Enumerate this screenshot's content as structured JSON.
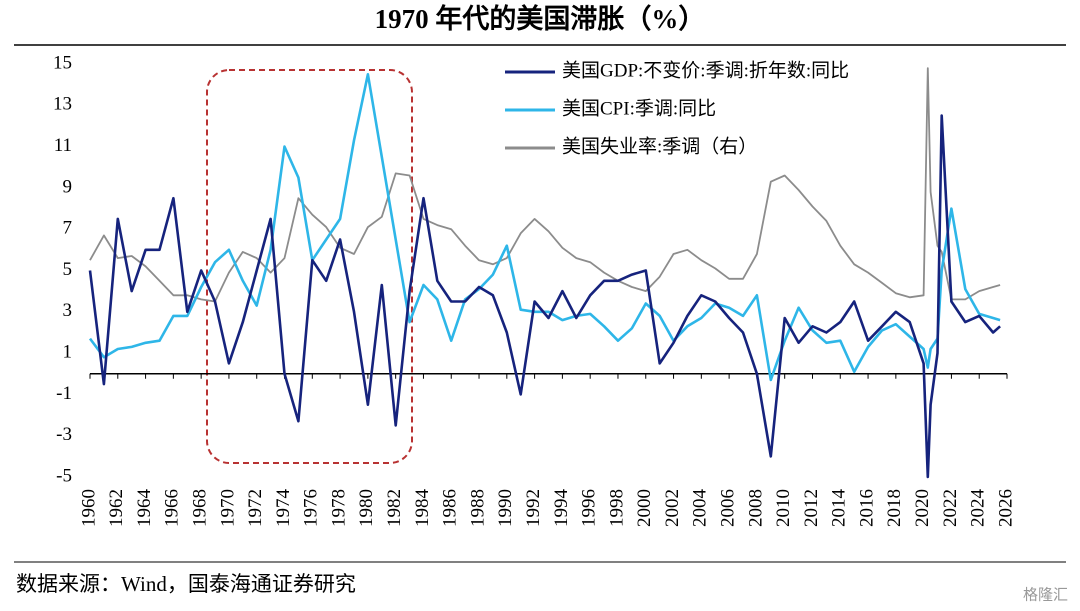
{
  "chart_data": {
    "type": "line",
    "title": "1970 年代的美国滞胀（%）",
    "source": "数据来源：Wind，国泰海通证券研究",
    "watermark": "格隆汇",
    "xlim": [
      1960,
      2026
    ],
    "ylim": [
      -5,
      15
    ],
    "yticks": [
      -5,
      -3,
      -1,
      1,
      3,
      5,
      7,
      9,
      11,
      13,
      15
    ],
    "xticks": [
      1960,
      1962,
      1964,
      1966,
      1968,
      1970,
      1972,
      1974,
      1976,
      1978,
      1980,
      1982,
      1984,
      1986,
      1988,
      1990,
      1992,
      1994,
      1996,
      1998,
      2000,
      2002,
      2004,
      2006,
      2008,
      2010,
      2012,
      2014,
      2016,
      2018,
      2020,
      2022,
      2024,
      2026
    ],
    "legend": "upper right",
    "x": [
      1960,
      1961,
      1962,
      1963,
      1964,
      1965,
      1966,
      1967,
      1968,
      1969,
      1970,
      1971,
      1972,
      1973,
      1974,
      1975,
      1976,
      1977,
      1978,
      1979,
      1980,
      1981,
      1982,
      1983,
      1984,
      1985,
      1986,
      1987,
      1988,
      1989,
      1990,
      1991,
      1992,
      1993,
      1994,
      1995,
      1996,
      1997,
      1998,
      1999,
      2000,
      2001,
      2002,
      2003,
      2004,
      2005,
      2006,
      2007,
      2008,
      2009,
      2010,
      2011,
      2012,
      2013,
      2014,
      2015,
      2016,
      2017,
      2018,
      2019,
      2020,
      2020.3,
      2020.5,
      2021,
      2021.3,
      2022,
      2023,
      2024,
      2025,
      2025.5
    ],
    "series": [
      {
        "name": "美国GDP:不变价:季调:折年数:同比",
        "color": "#16237d",
        "values": [
          5,
          -0.5,
          7.5,
          4,
          6,
          6,
          8.5,
          3,
          5,
          3.5,
          0.5,
          2.5,
          5,
          7.5,
          0,
          -2.3,
          5.5,
          4.5,
          6.5,
          3,
          -1.5,
          4.3,
          -2.5,
          4,
          8.5,
          4.5,
          3.5,
          3.5,
          4.2,
          3.8,
          2,
          -1,
          3.5,
          2.7,
          4,
          2.7,
          3.8,
          4.5,
          4.5,
          4.8,
          5,
          0.5,
          1.5,
          2.8,
          3.8,
          3.5,
          2.7,
          2,
          0,
          -4,
          2.7,
          1.5,
          2.3,
          2,
          2.5,
          3.5,
          1.6,
          2.3,
          3,
          2.5,
          0.5,
          -5,
          -1.5,
          1,
          12.5,
          3.5,
          2.5,
          2.8,
          2,
          2.3
        ]
      },
      {
        "name": "美国CPI:季调:同比",
        "color": "#2eb6e8",
        "values": [
          1.7,
          0.8,
          1.2,
          1.3,
          1.5,
          1.6,
          2.8,
          2.8,
          4.2,
          5.4,
          6,
          4.5,
          3.3,
          6,
          11,
          9.5,
          5.5,
          6.5,
          7.5,
          11.3,
          14.5,
          10.5,
          6.5,
          2.5,
          4.3,
          3.6,
          1.6,
          3.6,
          4.1,
          4.8,
          6.2,
          3.1,
          3,
          3,
          2.6,
          2.8,
          2.9,
          2.3,
          1.6,
          2.2,
          3.4,
          2.8,
          1.6,
          2.3,
          2.7,
          3.4,
          3.2,
          2.8,
          3.8,
          -0.3,
          1.6,
          3.2,
          2.1,
          1.5,
          1.6,
          0.1,
          1.3,
          2.1,
          2.4,
          1.8,
          1.2,
          0.3,
          1.2,
          1.7,
          5,
          8,
          4.1,
          2.9,
          2.7,
          2.6
        ]
      },
      {
        "name": "美国失业率:季调（右）",
        "color": "#8c8c8c",
        "values": [
          5.5,
          6.7,
          5.6,
          5.7,
          5.2,
          4.5,
          3.8,
          3.8,
          3.6,
          3.5,
          4.9,
          5.9,
          5.6,
          4.9,
          5.6,
          8.5,
          7.7,
          7.1,
          6.1,
          5.8,
          7.1,
          7.6,
          9.7,
          9.6,
          7.5,
          7.2,
          7,
          6.2,
          5.5,
          5.3,
          5.6,
          6.8,
          7.5,
          6.9,
          6.1,
          5.6,
          5.4,
          4.9,
          4.5,
          4.2,
          4,
          4.7,
          5.8,
          6,
          5.5,
          5.1,
          4.6,
          4.6,
          5.8,
          9.3,
          9.6,
          8.9,
          8.1,
          7.4,
          6.2,
          5.3,
          4.9,
          4.4,
          3.9,
          3.7,
          3.8,
          14.8,
          8.8,
          6.2,
          5.9,
          3.6,
          3.6,
          4,
          4.2,
          4.3
        ]
      }
    ]
  }
}
